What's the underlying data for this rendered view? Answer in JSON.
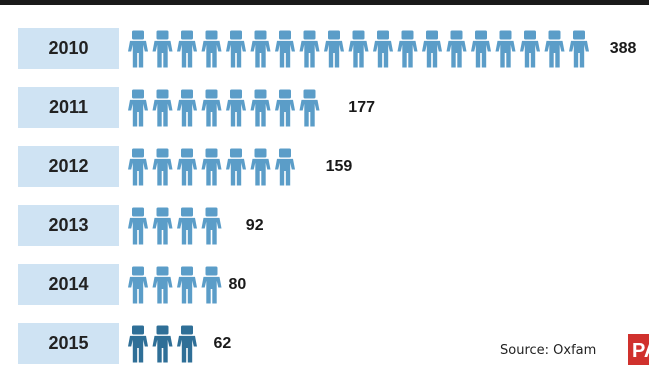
{
  "chart_data": {
    "type": "bar",
    "categories": [
      "2010",
      "2011",
      "2012",
      "2013",
      "2014",
      "2015"
    ],
    "values": [
      388,
      177,
      159,
      92,
      80,
      62
    ],
    "value_labels": [
      "388",
      "177",
      "159",
      "92",
      "80",
      "62"
    ],
    "unit_icon": "person-icon",
    "grid": false
  },
  "footer": {
    "source": "Source: Oxfam",
    "brand": "PA"
  },
  "colors": {
    "icon": "#5b9dc8",
    "icon_highlight": "#2f6f97",
    "year_box": "#cfe3f3",
    "text": "#1a1a1a",
    "brand": "#d0312d"
  }
}
